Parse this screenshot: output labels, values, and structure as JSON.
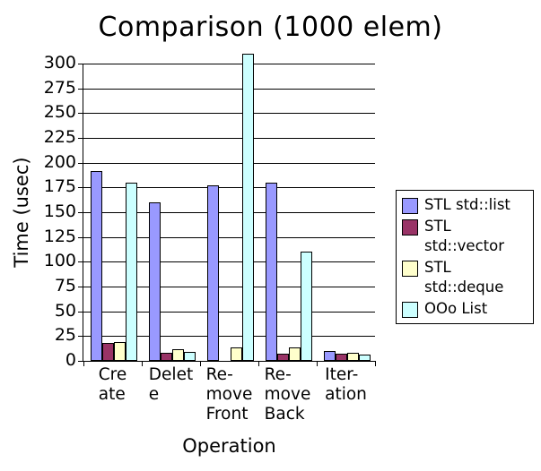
{
  "title": "Comparison (1000 elem)",
  "chart_data": {
    "type": "bar",
    "title": "Comparison (1000 elem)",
    "xlabel": "Operation",
    "ylabel": "Time (usec)",
    "ylim": [
      0,
      300
    ],
    "yticks": [
      0,
      25,
      50,
      75,
      100,
      125,
      150,
      175,
      200,
      225,
      250,
      275,
      300
    ],
    "grid": true,
    "legend_position": "right",
    "categories": [
      "Create",
      "Delete",
      "Remove Front",
      "Remove Back",
      "Iteration"
    ],
    "categories_display": [
      "Cre\nate",
      "Delet\ne",
      "Re-\nmove\nFront",
      "Re-\nmove\nBack",
      "Iter-\nation"
    ],
    "series": [
      {
        "name": "STL std::list",
        "color": "#9999FF",
        "values": [
          192,
          160,
          177,
          180,
          10
        ]
      },
      {
        "name": "STL std::vector",
        "color": "#993366",
        "values": [
          18,
          8,
          0,
          7,
          7
        ]
      },
      {
        "name": "STL std::deque",
        "color": "#FFFFCC",
        "values": [
          19,
          12,
          14,
          14,
          8
        ]
      },
      {
        "name": "OOo List",
        "color": "#CCFFFF",
        "values": [
          180,
          9,
          310,
          110,
          6
        ]
      }
    ],
    "legend_labels": [
      "STL std::list",
      "STL\nstd::vector",
      "STL std::deque",
      "OOo List"
    ],
    "note_clipped_bar": "OOo List value at Remove Front exceeds y-axis maximum of 300"
  },
  "colors": {
    "background": "#FFFFFF",
    "axis": "#000000",
    "grid": "#000000",
    "text": "#000000",
    "series1": "#9999FF",
    "series2": "#993366",
    "series3": "#FFFFCC",
    "series4": "#CCFFFF"
  }
}
